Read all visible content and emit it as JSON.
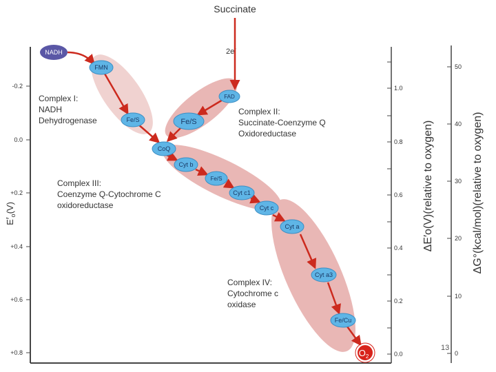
{
  "source": {
    "label": "Succinate",
    "electrons": "2e",
    "electrons_sup": "-"
  },
  "colors": {
    "arrow": "#cc2a1e",
    "node": "#5fb5e6",
    "node_stroke": "#3b8ec4",
    "nadh": "#5a57a6",
    "complex_fill": "#e9b7b5",
    "complex_fill_light": "#f0d2d0",
    "oxygen": "#d8231b",
    "axis": "#444444"
  },
  "left_axis": {
    "label_main": "E",
    "label_prime": "′",
    "label_sub": "o",
    "label_unit": "(V)",
    "ticks": [
      "-0.2",
      "0.0",
      "+0.2",
      "+0.4",
      "+0.6",
      "+0.8"
    ]
  },
  "mid_axis": {
    "label": "ΔE′o(V)(relative to oxygen)",
    "ticks": [
      "1.0",
      "0.8",
      "0.6",
      "0.4",
      "0.2",
      "0.0"
    ]
  },
  "right_axis": {
    "label": "ΔG°(kcal/mol)(relative to oxygen)",
    "ticks": [
      "50",
      "40",
      "30",
      "20",
      "10",
      "0"
    ]
  },
  "nodes": {
    "nadh": "NADH",
    "fmn": "FMN",
    "fes1": "Fe/S",
    "fad": "FAD",
    "fes2": "Fe/S",
    "coq": "CoQ",
    "cytb": "Cyt b",
    "fes3": "Fe/S",
    "cytc1": "Cyt c1",
    "cytc": "Cyt c",
    "cyta": "Cyt a",
    "cyta3": "Cyt a3",
    "fecu": "Fe/Cu",
    "o2": "O",
    "o2_sub": "2"
  },
  "complexes": {
    "c1": [
      "Complex I:",
      "NADH",
      "Dehydrogenase"
    ],
    "c2": [
      "Complex II:",
      "Succinate-Coenzyme Q",
      "Oxidoreductase"
    ],
    "c3": [
      "Complex III:",
      "Coenzyme Q-Cytochrome C",
      "oxidoreductase"
    ],
    "c4": [
      "Complex IV:",
      "Cytochrome  c",
      "oxidase"
    ]
  },
  "page_number": "13"
}
